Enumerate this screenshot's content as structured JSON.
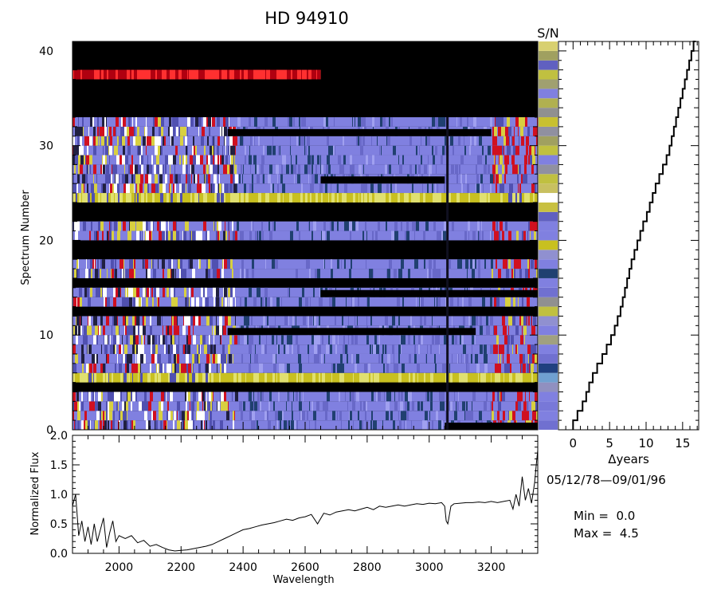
{
  "title": "HD  94910",
  "colors": {
    "background": "#ffffff",
    "axis": "#000000",
    "spectrum_blue": "#8080e0",
    "spectrum_dark_blue": "#204070",
    "spectrum_red": "#d01020",
    "spectrum_yellow": "#c8c020",
    "gap": "#000000"
  },
  "info": {
    "date_range": "05/12/78—09/01/96",
    "min_text": "Min =  0.0",
    "max_text": "Max =  4.5"
  },
  "chart_data": [
    {
      "id": "spectrum-image",
      "type": "heatmap",
      "title": "HD  94910",
      "xlabel": "",
      "ylabel": "Spectrum Number",
      "xlim": [
        1850,
        3350
      ],
      "ylim": [
        0,
        41
      ],
      "y_ticks": [
        0,
        10,
        20,
        30,
        40
      ],
      "rows": [
        {
          "n": 0,
          "state": "data",
          "gap_from": 3050
        },
        {
          "n": 1,
          "state": "data"
        },
        {
          "n": 2,
          "state": "data"
        },
        {
          "n": 3,
          "state": "data"
        },
        {
          "n": 4,
          "state": "gap"
        },
        {
          "n": 5,
          "state": "data",
          "tone": "yellow"
        },
        {
          "n": 6,
          "state": "data"
        },
        {
          "n": 7,
          "state": "data"
        },
        {
          "n": 8,
          "state": "data"
        },
        {
          "n": 9,
          "state": "data"
        },
        {
          "n": 10,
          "state": "data",
          "gap_from": 2350,
          "gap_to": 3150
        },
        {
          "n": 11,
          "state": "data"
        },
        {
          "n": 12,
          "state": "gap"
        },
        {
          "n": 13,
          "state": "data"
        },
        {
          "n": 14,
          "state": "data",
          "gap_from": 2650
        },
        {
          "n": 15,
          "state": "gap"
        },
        {
          "n": 16,
          "state": "data"
        },
        {
          "n": 17,
          "state": "data"
        },
        {
          "n": 18,
          "state": "gap"
        },
        {
          "n": 19,
          "state": "gap"
        },
        {
          "n": 20,
          "state": "data"
        },
        {
          "n": 21,
          "state": "data"
        },
        {
          "n": 22,
          "state": "gap"
        },
        {
          "n": 23,
          "state": "gap"
        },
        {
          "n": 24,
          "state": "data",
          "tone": "yellow"
        },
        {
          "n": 25,
          "state": "data"
        },
        {
          "n": 26,
          "state": "data",
          "gap_from": 2650,
          "gap_to": 3050
        },
        {
          "n": 27,
          "state": "data"
        },
        {
          "n": 28,
          "state": "data"
        },
        {
          "n": 29,
          "state": "data"
        },
        {
          "n": 30,
          "state": "data"
        },
        {
          "n": 31,
          "state": "data",
          "gap_from": 2350,
          "gap_to": 3200
        },
        {
          "n": 32,
          "state": "data"
        },
        {
          "n": 33,
          "state": "gap",
          "tone": "red_edge"
        },
        {
          "n": 34,
          "state": "gap"
        },
        {
          "n": 35,
          "state": "gap"
        },
        {
          "n": 36,
          "state": "gap"
        },
        {
          "n": 37,
          "state": "data",
          "tone": "red",
          "gap_from": 2650
        },
        {
          "n": 38,
          "state": "gap"
        },
        {
          "n": 39,
          "state": "gap"
        },
        {
          "n": 40,
          "state": "gap"
        }
      ]
    },
    {
      "id": "sn-bar",
      "type": "heatmap",
      "title": "S/N",
      "ylim": [
        0,
        41
      ],
      "values": [
        "#7070d0",
        "#8080e0",
        "#7878d8",
        "#8080e0",
        "#9090c0",
        "#70a0d0",
        "#204080",
        "#7070d0",
        "#8080e0",
        "#a0a080",
        "#8080e0",
        "#9090d0",
        "#c0c040",
        "#909090",
        "#7070d0",
        "#8080e0",
        "#204070",
        "#8080e0",
        "#9090d0",
        "#c8c020",
        "#8080e0",
        "#8080e0",
        "#6060c0",
        "#c8c040",
        "#ffffff",
        "#c8c060",
        "#c0c040",
        "#9090a0",
        "#8080e0",
        "#c0c040",
        "#a0a060",
        "#9090a0",
        "#c8c030",
        "#909090",
        "#b0b050",
        "#8080e0",
        "#a0a070",
        "#c0c040",
        "#6060c0",
        "#a0a060",
        "#d8d070"
      ]
    },
    {
      "id": "time-staircase",
      "type": "line",
      "xlabel": "Δyears",
      "xlim": [
        -2,
        17.2
      ],
      "ylim": [
        0,
        41
      ],
      "x_ticks": [
        0,
        5,
        10,
        15
      ],
      "x": [
        0.0,
        0.6,
        1.3,
        1.8,
        2.2,
        2.7,
        3.3,
        4.0,
        4.6,
        5.2,
        5.7,
        6.1,
        6.5,
        6.8,
        7.1,
        7.4,
        7.7,
        8.0,
        8.4,
        8.8,
        9.2,
        9.6,
        10.1,
        10.5,
        10.9,
        11.3,
        11.8,
        12.3,
        12.8,
        13.2,
        13.5,
        13.8,
        14.1,
        14.4,
        14.7,
        15.0,
        15.3,
        15.6,
        15.9,
        16.2,
        16.5,
        16.8
      ],
      "y": [
        0,
        1,
        2,
        3,
        4,
        5,
        6,
        7,
        8,
        9,
        10,
        11,
        12,
        13,
        14,
        15,
        16,
        17,
        18,
        19,
        20,
        21,
        22,
        23,
        24,
        25,
        26,
        27,
        28,
        29,
        30,
        31,
        32,
        33,
        34,
        35,
        36,
        37,
        38,
        39,
        40,
        41
      ]
    },
    {
      "id": "mean-spectrum",
      "type": "line",
      "xlabel": "Wavelength",
      "ylabel": "Normalized Flux",
      "xlim": [
        1850,
        3350
      ],
      "ylim": [
        0,
        2
      ],
      "x_ticks": [
        2000,
        2200,
        2400,
        2600,
        2800,
        3000,
        3200
      ],
      "y_ticks": [
        "0.0",
        "0.5",
        "1.0",
        "1.5",
        "2.0"
      ],
      "x": [
        1850,
        1860,
        1870,
        1880,
        1890,
        1900,
        1910,
        1920,
        1930,
        1940,
        1950,
        1960,
        1970,
        1980,
        1990,
        2000,
        2020,
        2040,
        2060,
        2080,
        2100,
        2120,
        2140,
        2160,
        2180,
        2200,
        2220,
        2240,
        2260,
        2280,
        2300,
        2320,
        2340,
        2360,
        2380,
        2400,
        2420,
        2440,
        2460,
        2480,
        2500,
        2520,
        2540,
        2560,
        2580,
        2600,
        2620,
        2640,
        2660,
        2680,
        2700,
        2720,
        2740,
        2760,
        2780,
        2800,
        2820,
        2840,
        2860,
        2880,
        2900,
        2920,
        2940,
        2960,
        2980,
        3000,
        3020,
        3040,
        3050,
        3055,
        3060,
        3070,
        3080,
        3100,
        3120,
        3140,
        3160,
        3180,
        3200,
        3220,
        3240,
        3260,
        3270,
        3280,
        3290,
        3300,
        3310,
        3320,
        3330,
        3340,
        3345,
        3350
      ],
      "y": [
        0.8,
        1.0,
        0.3,
        0.55,
        0.2,
        0.45,
        0.15,
        0.5,
        0.2,
        0.4,
        0.6,
        0.1,
        0.35,
        0.55,
        0.2,
        0.3,
        0.25,
        0.3,
        0.18,
        0.22,
        0.12,
        0.15,
        0.1,
        0.06,
        0.04,
        0.05,
        0.06,
        0.08,
        0.1,
        0.12,
        0.15,
        0.2,
        0.25,
        0.3,
        0.35,
        0.4,
        0.42,
        0.45,
        0.48,
        0.5,
        0.52,
        0.55,
        0.58,
        0.56,
        0.6,
        0.62,
        0.66,
        0.5,
        0.68,
        0.65,
        0.7,
        0.72,
        0.74,
        0.72,
        0.75,
        0.78,
        0.74,
        0.8,
        0.78,
        0.8,
        0.82,
        0.8,
        0.82,
        0.84,
        0.83,
        0.85,
        0.84,
        0.86,
        0.8,
        0.55,
        0.5,
        0.8,
        0.84,
        0.85,
        0.86,
        0.86,
        0.87,
        0.86,
        0.88,
        0.86,
        0.88,
        0.9,
        0.75,
        1.0,
        0.8,
        1.3,
        0.9,
        1.1,
        0.85,
        1.2,
        1.5,
        1.75
      ]
    }
  ]
}
